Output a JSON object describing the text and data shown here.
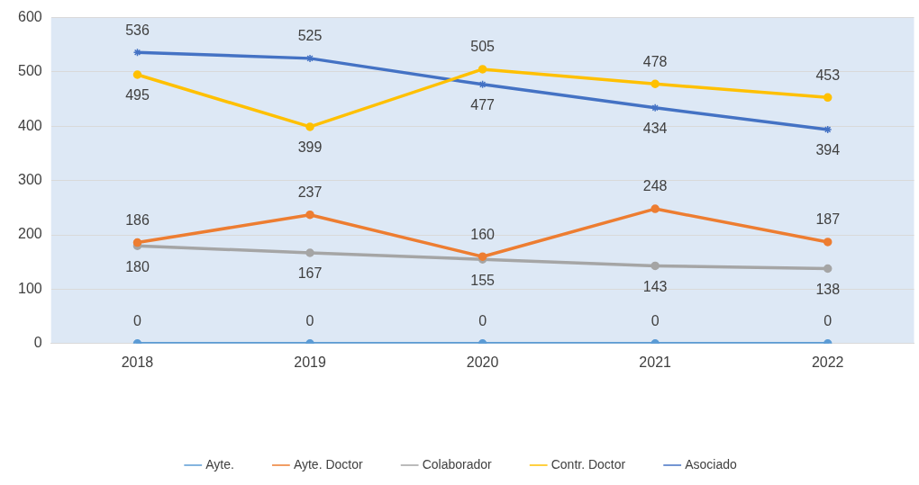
{
  "chart_data": {
    "type": "line",
    "categories": [
      "2018",
      "2019",
      "2020",
      "2021",
      "2022"
    ],
    "series": [
      {
        "name": "Ayte.",
        "color": "#5b9bd5",
        "values": [
          0,
          0,
          0,
          0,
          0
        ]
      },
      {
        "name": "Ayte. Doctor",
        "color": "#ed7d31",
        "values": [
          186,
          237,
          160,
          248,
          187
        ]
      },
      {
        "name": "Colaborador",
        "color": "#a5a5a5",
        "values": [
          180,
          167,
          155,
          143,
          138
        ]
      },
      {
        "name": "Contr. Doctor",
        "color": "#ffc000",
        "values": [
          495,
          399,
          505,
          478,
          453
        ]
      },
      {
        "name": "Asociado",
        "color": "#4472c4",
        "values": [
          536,
          525,
          477,
          434,
          394
        ],
        "marker": "cross"
      }
    ],
    "ylim": [
      0,
      600
    ],
    "yticks": [
      0,
      100,
      200,
      300,
      400,
      500,
      600
    ],
    "grid": "y",
    "legend": "bottom",
    "marker": "circle",
    "data_labels": true
  }
}
